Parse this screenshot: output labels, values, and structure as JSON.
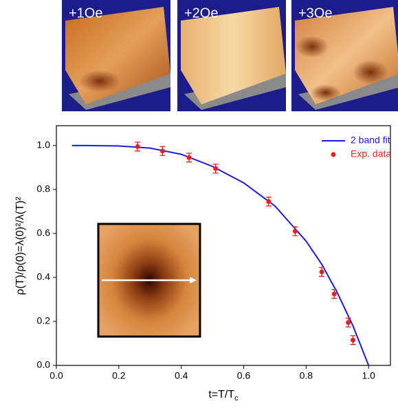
{
  "panels": [
    {
      "label": "+1Oe"
    },
    {
      "label": "+2Oe"
    },
    {
      "label": "+3Oe"
    }
  ],
  "chart_data": {
    "type": "line",
    "x_label": {
      "main": "t=T/T",
      "sub": "c"
    },
    "y_label": "ρ(T)/ρ(0)=λ(0)²/λ(T)²",
    "xlim": [
      0,
      1.07
    ],
    "ylim": [
      0,
      1.09
    ],
    "xticks": [
      {
        "value": 0,
        "label": "0.0"
      },
      0.2,
      0.4,
      0.6,
      0.8,
      {
        "value": 1,
        "label": "1.0"
      }
    ],
    "yticks": [
      {
        "value": 0,
        "label": "0.0"
      },
      0.2,
      0.4,
      0.6,
      0.8,
      {
        "value": 1,
        "label": "1.0"
      }
    ],
    "series": [
      {
        "name": "2 band fit",
        "type": "line",
        "color": "#1a1ae6",
        "x": [
          0.05,
          0.1,
          0.2,
          0.3,
          0.4,
          0.5,
          0.6,
          0.7,
          0.8,
          0.85,
          0.9,
          0.95,
          1.0
        ],
        "values": [
          1.0,
          1.0,
          0.998,
          0.988,
          0.96,
          0.905,
          0.83,
          0.725,
          0.565,
          0.46,
          0.33,
          0.18,
          0.0
        ]
      },
      {
        "name": "Exp. data",
        "type": "scatter",
        "color": "#ee1c1c",
        "x": [
          0.26,
          0.34,
          0.425,
          0.51,
          0.68,
          0.765,
          0.85,
          0.89,
          0.935,
          0.95
        ],
        "values": [
          0.995,
          0.975,
          0.945,
          0.895,
          0.745,
          0.61,
          0.425,
          0.325,
          0.195,
          0.115
        ],
        "errors": [
          0.02,
          0.02,
          0.02,
          0.02,
          0.02,
          0.02,
          0.02,
          0.02,
          0.02,
          0.02
        ]
      }
    ]
  }
}
